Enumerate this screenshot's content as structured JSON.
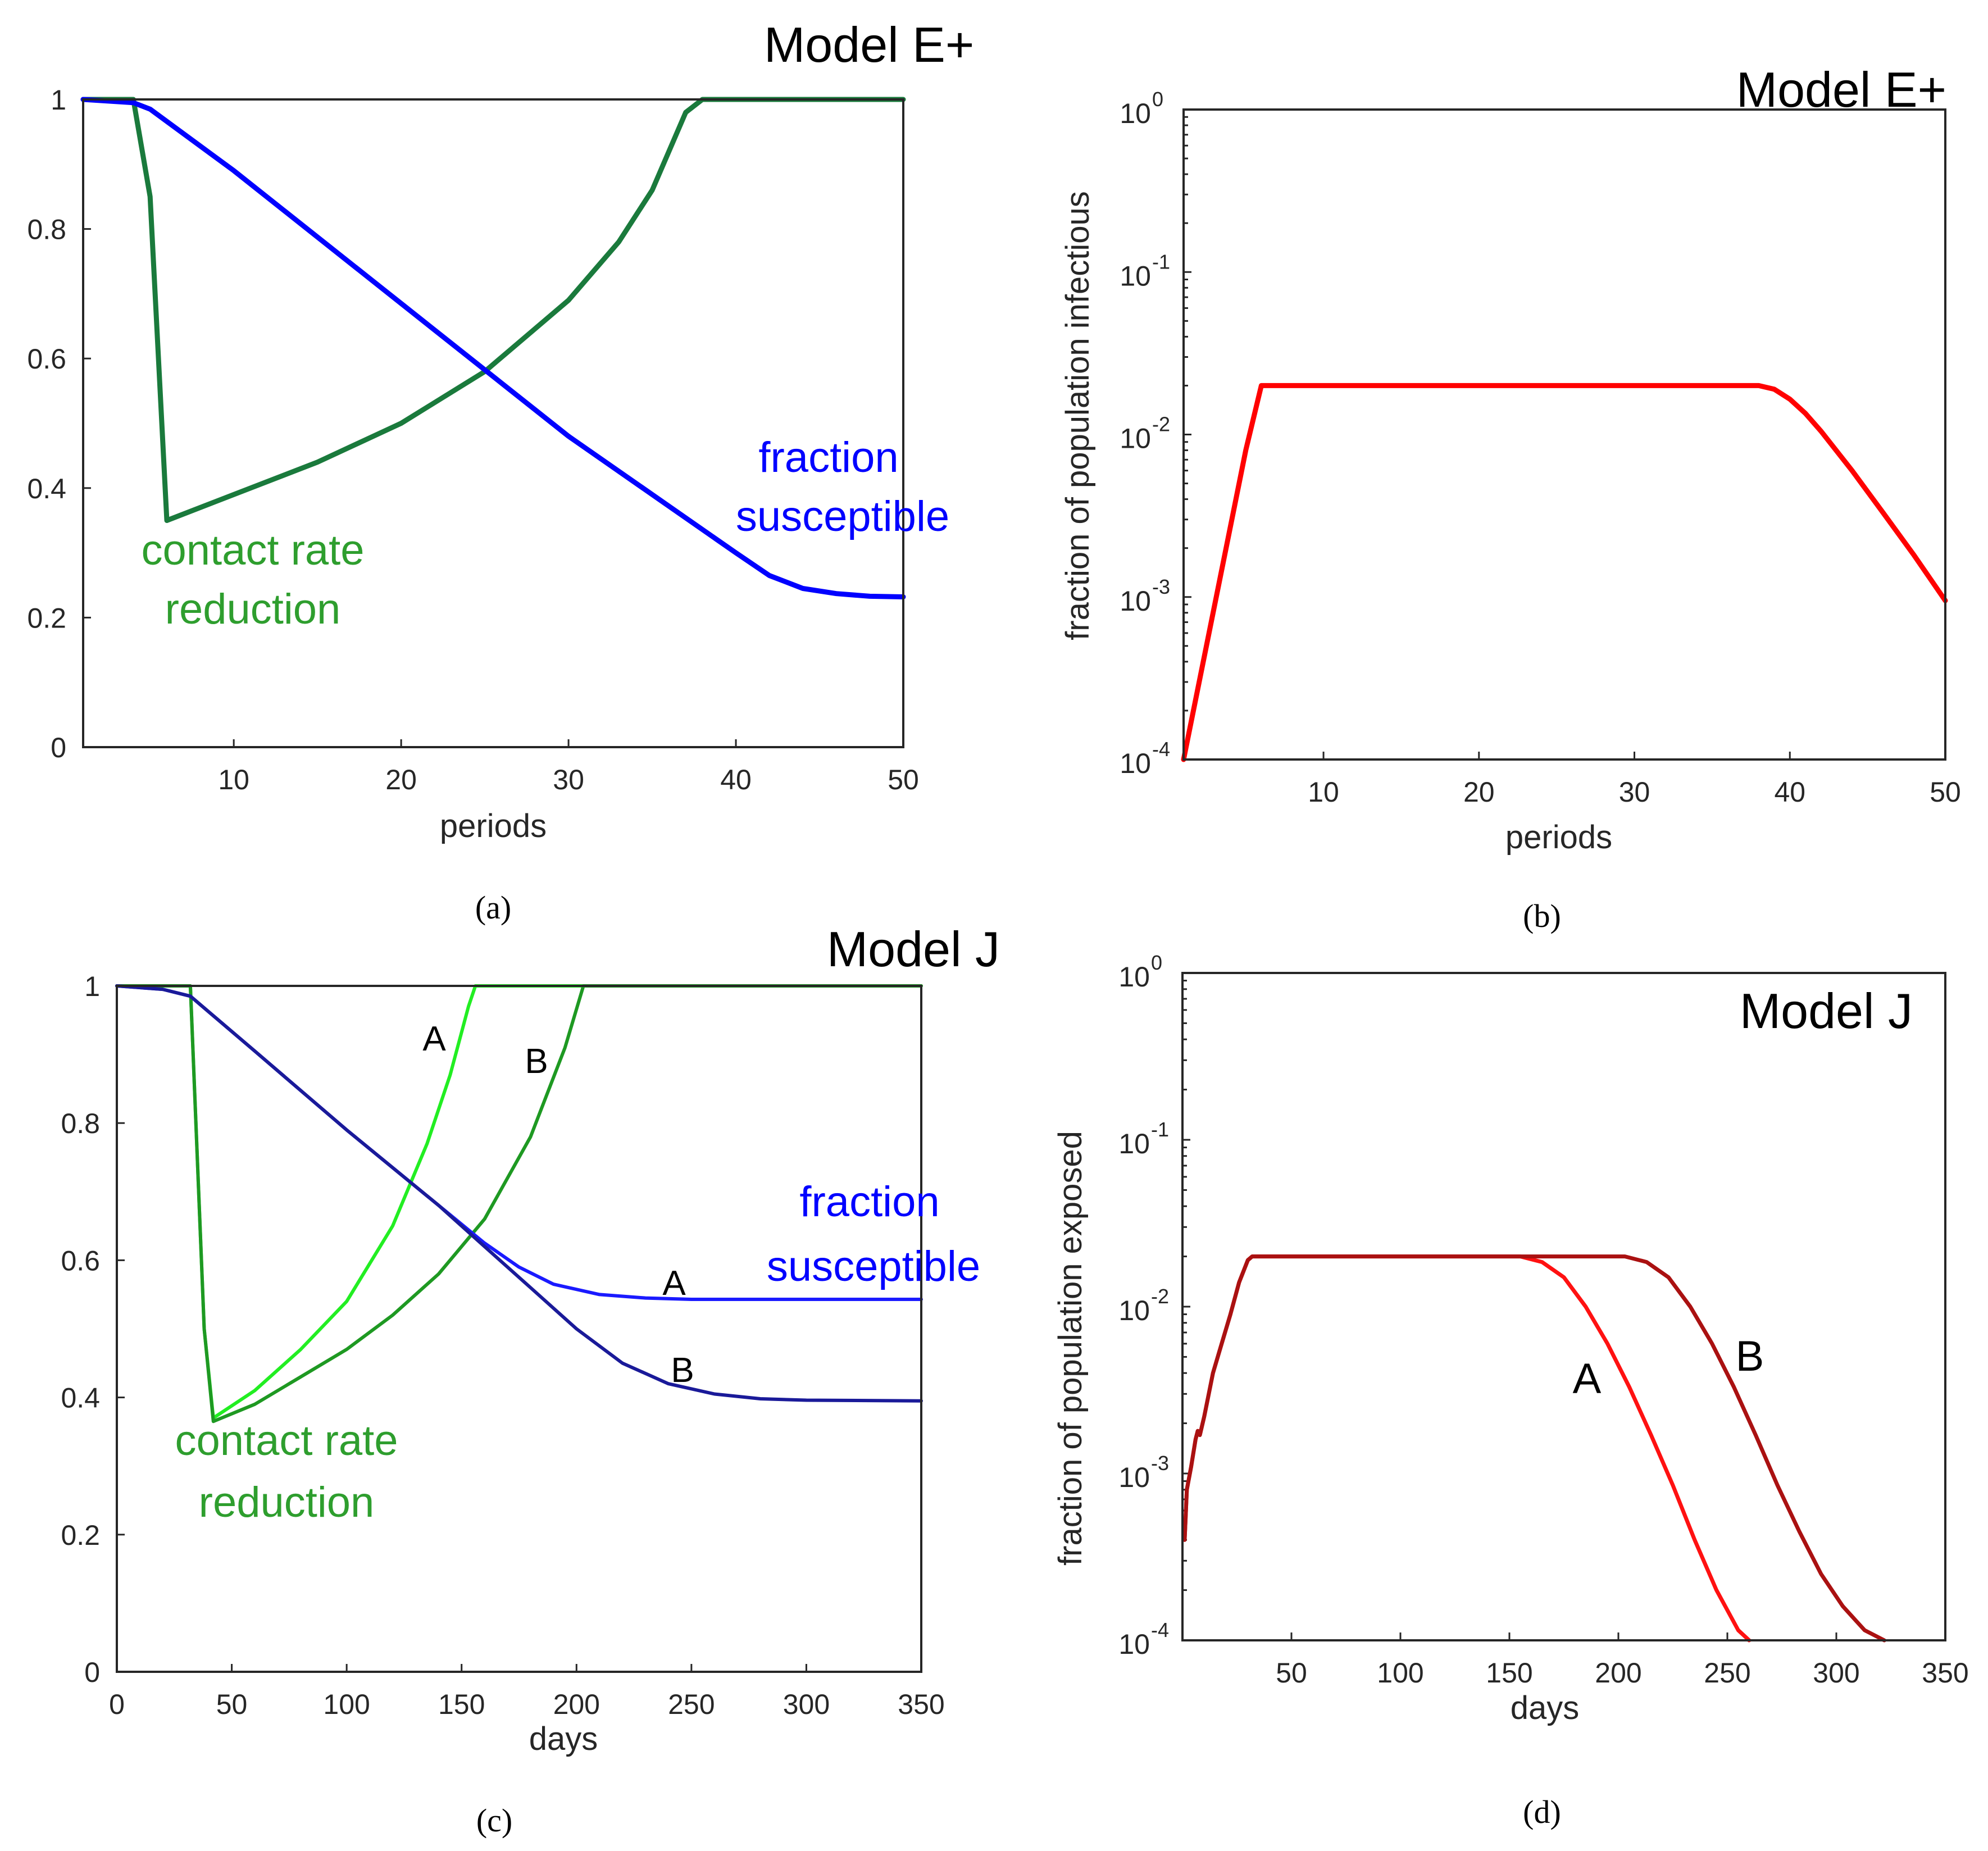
{
  "chart_data": [
    {
      "id": "a",
      "type": "line",
      "title": "Model E+",
      "xlabel": "periods",
      "ylabel": "",
      "xlim": [
        1,
        50
      ],
      "ylim": [
        0,
        1
      ],
      "xticks": [
        10,
        20,
        30,
        40,
        50
      ],
      "xtick_labels": [
        "10",
        "20",
        "30",
        "40",
        "50"
      ],
      "yticks": [
        0,
        0.2,
        0.4,
        0.6,
        0.8,
        1
      ],
      "ytick_labels": [
        "0",
        "0.2",
        "0.4",
        "0.6",
        "0.8",
        "1"
      ],
      "caption": "(a)",
      "series": [
        {
          "name": "contact rate reduction",
          "color": "#1a7a3c",
          "x": [
            1,
            4,
            5,
            6,
            10,
            15,
            20,
            25,
            30,
            33,
            35,
            37,
            38,
            50
          ],
          "y": [
            1,
            1,
            0.85,
            0.35,
            0.39,
            0.44,
            0.5,
            0.58,
            0.69,
            0.78,
            0.86,
            0.98,
            1,
            1
          ]
        },
        {
          "name": "fraction susceptible",
          "color": "#0000ff",
          "x": [
            1,
            4,
            5,
            10,
            20,
            30,
            40,
            42,
            44,
            46,
            48,
            50
          ],
          "y": [
            1,
            0.995,
            0.985,
            0.89,
            0.685,
            0.48,
            0.3,
            0.265,
            0.245,
            0.237,
            0.233,
            0.232
          ]
        }
      ],
      "annotations": [
        {
          "lines": [
            "contact rate",
            "reduction"
          ],
          "color": "#2e9e2e"
        },
        {
          "lines": [
            "fraction",
            "susceptible"
          ],
          "color": "#0000ff"
        }
      ]
    },
    {
      "id": "b",
      "type": "line",
      "title": "Model E+",
      "xlabel": "periods",
      "ylabel": "fraction of population infectious",
      "yscale": "log",
      "xlim": [
        1,
        50
      ],
      "ylim": [
        0.0001,
        1
      ],
      "xticks": [
        10,
        20,
        30,
        40,
        50
      ],
      "xtick_labels": [
        "10",
        "20",
        "30",
        "40",
        "50"
      ],
      "yticks": [
        0.0001,
        0.001,
        0.01,
        0.1,
        1
      ],
      "ytick_exponents": [
        "-4",
        "-3",
        "-2",
        "-1",
        "0"
      ],
      "ytick_base": "10",
      "caption": "(b)",
      "series": [
        {
          "name": "infectious",
          "color": "#ff0000",
          "x": [
            1,
            5,
            6,
            38,
            39,
            40,
            41,
            42,
            44,
            46,
            48,
            50
          ],
          "y": [
            0.0001,
            0.008,
            0.02,
            0.02,
            0.019,
            0.0165,
            0.0135,
            0.0105,
            0.006,
            0.0033,
            0.0018,
            0.00095
          ]
        }
      ]
    },
    {
      "id": "c",
      "type": "line",
      "title": "Model J",
      "xlabel": "days",
      "ylabel": "",
      "xlim": [
        0,
        350
      ],
      "ylim": [
        0,
        1
      ],
      "xticks": [
        0,
        50,
        100,
        150,
        200,
        250,
        300,
        350
      ],
      "xtick_labels": [
        "0",
        "50",
        "100",
        "150",
        "200",
        "250",
        "300",
        "350"
      ],
      "yticks": [
        0,
        0.2,
        0.4,
        0.6,
        0.8,
        1
      ],
      "ytick_labels": [
        "0",
        "0.2",
        "0.4",
        "0.6",
        "0.8",
        "1"
      ],
      "caption": "(c)",
      "series": [
        {
          "name": "contact rate reduction A",
          "color": "#22ee22",
          "x": [
            0,
            32,
            35,
            38,
            42,
            60,
            80,
            100,
            120,
            135,
            145,
            153,
            156,
            350
          ],
          "y": [
            1,
            1,
            0.75,
            0.5,
            0.37,
            0.41,
            0.47,
            0.54,
            0.65,
            0.77,
            0.87,
            0.97,
            1,
            1
          ]
        },
        {
          "name": "contact rate reduction B",
          "color": "#1e9922",
          "x": [
            0,
            32,
            35,
            38,
            42,
            60,
            80,
            100,
            120,
            140,
            160,
            180,
            195,
            203,
            350
          ],
          "y": [
            1,
            1,
            0.75,
            0.5,
            0.365,
            0.39,
            0.43,
            0.47,
            0.52,
            0.58,
            0.66,
            0.78,
            0.91,
            1,
            1
          ]
        },
        {
          "name": "fraction susceptible A",
          "color": "#1a1aff",
          "x": [
            0,
            20,
            32,
            60,
            100,
            140,
            160,
            175,
            190,
            210,
            230,
            250,
            350
          ],
          "y": [
            1,
            0.995,
            0.985,
            0.905,
            0.79,
            0.68,
            0.625,
            0.59,
            0.565,
            0.55,
            0.545,
            0.543,
            0.543
          ]
        },
        {
          "name": "fraction susceptible B",
          "color": "#1a1a99",
          "x": [
            0,
            20,
            32,
            60,
            100,
            140,
            160,
            180,
            200,
            220,
            240,
            260,
            280,
            300,
            350
          ],
          "y": [
            1,
            0.995,
            0.985,
            0.905,
            0.79,
            0.68,
            0.62,
            0.56,
            0.5,
            0.45,
            0.42,
            0.405,
            0.398,
            0.396,
            0.395
          ]
        }
      ],
      "annotations": [
        {
          "lines": [
            "contact rate",
            "reduction"
          ],
          "color": "#2e9e2e"
        },
        {
          "lines": [
            "fraction",
            "susceptible"
          ],
          "color": "#0000ff"
        }
      ],
      "labels": {
        "a_green": "A",
        "b_green": "B",
        "a_blue": "A",
        "b_blue": "B"
      }
    },
    {
      "id": "d",
      "type": "line",
      "title": "Model J",
      "xlabel": "days",
      "ylabel": "fraction of population exposed",
      "yscale": "log",
      "xlim": [
        0,
        350
      ],
      "ylim": [
        0.0001,
        1
      ],
      "xticks": [
        50,
        100,
        150,
        200,
        250,
        300,
        350
      ],
      "xtick_labels": [
        "50",
        "100",
        "150",
        "200",
        "250",
        "300",
        "350"
      ],
      "yticks": [
        0.0001,
        0.001,
        0.01,
        0.1,
        1
      ],
      "ytick_exponents": [
        "-4",
        "-3",
        "-2",
        "-1",
        "0"
      ],
      "ytick_base": "10",
      "caption": "(d)",
      "series": [
        {
          "name": "A",
          "color": "#ff1111",
          "x": [
            1,
            2,
            4,
            6,
            7,
            8,
            10,
            14,
            18,
            22,
            26,
            30,
            32,
            155,
            165,
            175,
            185,
            195,
            205,
            215,
            225,
            235,
            245,
            255,
            260
          ],
          "y": [
            0.0004,
            0.0008,
            0.0011,
            0.0016,
            0.0018,
            0.0017,
            0.0022,
            0.004,
            0.006,
            0.009,
            0.014,
            0.019,
            0.02,
            0.02,
            0.0185,
            0.015,
            0.01,
            0.006,
            0.0033,
            0.0017,
            0.00085,
            0.0004,
            0.0002,
            0.000115,
            0.0001
          ]
        },
        {
          "name": "B",
          "color": "#aa1111",
          "x": [
            1,
            2,
            4,
            6,
            7,
            8,
            10,
            14,
            18,
            22,
            26,
            30,
            32,
            203,
            213,
            223,
            233,
            243,
            253,
            263,
            273,
            283,
            293,
            303,
            313,
            322
          ],
          "y": [
            0.0004,
            0.0008,
            0.0011,
            0.0016,
            0.0018,
            0.0017,
            0.0022,
            0.004,
            0.006,
            0.009,
            0.014,
            0.019,
            0.02,
            0.02,
            0.0185,
            0.015,
            0.01,
            0.006,
            0.0033,
            0.0017,
            0.00085,
            0.00045,
            0.00025,
            0.00016,
            0.000115,
            0.0001
          ]
        }
      ],
      "labels": {
        "a": "A",
        "b": "B"
      }
    }
  ]
}
